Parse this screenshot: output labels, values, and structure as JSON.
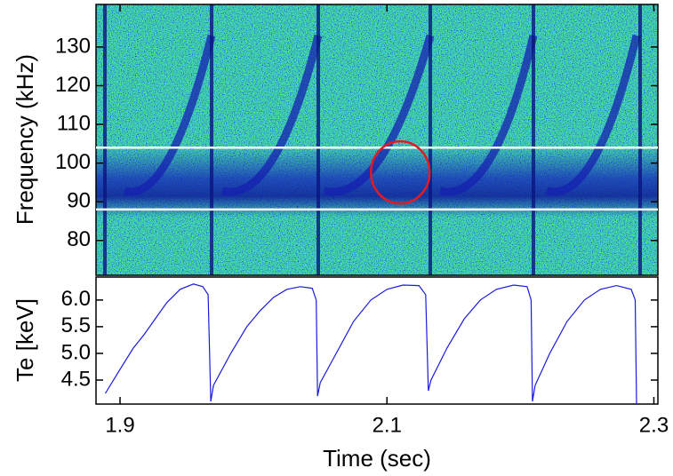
{
  "chart_data": [
    {
      "type": "spectrogram",
      "ylabel": "Frequency (kHz)",
      "xlim": [
        1.882,
        2.303
      ],
      "ylim": [
        71,
        141
      ],
      "yticks": [
        80,
        90,
        100,
        110,
        120,
        130
      ],
      "hlines": [
        88,
        104
      ],
      "hline_color": "#ffffff",
      "circle": {
        "x": 2.11,
        "y": 97.6
      },
      "circle_color": "#e8191e"
    },
    {
      "type": "line",
      "xlabel": "Time (sec)",
      "ylabel": "Te [keV]",
      "color": "#1a1adf",
      "xlim": [
        1.882,
        2.303
      ],
      "ylim": [
        4.05,
        6.43
      ],
      "xticks": [
        1.9,
        2.1,
        2.3
      ],
      "yticks": [
        4.5,
        {
          "value": 5.0,
          "label": "5.0"
        },
        5.5,
        {
          "value": 6.0,
          "label": "6.0"
        }
      ],
      "x": [
        1.889,
        1.9,
        1.91,
        1.918,
        1.925,
        1.935,
        1.945,
        1.955,
        1.962,
        1.966,
        1.968,
        1.97,
        1.983,
        1.995,
        2.005,
        2.015,
        2.025,
        2.035,
        2.044,
        2.047,
        2.048,
        2.05,
        2.062,
        2.075,
        2.088,
        2.1,
        2.112,
        2.124,
        2.129,
        2.131,
        2.133,
        2.145,
        2.158,
        2.17,
        2.182,
        2.195,
        2.205,
        2.208,
        2.209,
        2.211,
        2.222,
        2.235,
        2.248,
        2.26,
        2.272,
        2.283,
        2.286,
        2.287
      ],
      "values": [
        4.25,
        4.7,
        5.1,
        5.35,
        5.6,
        5.95,
        6.2,
        6.3,
        6.25,
        6.1,
        4.1,
        4.4,
        5.0,
        5.5,
        5.8,
        6.05,
        6.2,
        6.25,
        6.22,
        6.0,
        4.2,
        4.45,
        5.0,
        5.6,
        6.0,
        6.2,
        6.28,
        6.27,
        6.1,
        4.3,
        4.5,
        5.1,
        5.65,
        6.0,
        6.2,
        6.28,
        6.25,
        6.0,
        4.1,
        4.4,
        5.0,
        5.6,
        6.0,
        6.2,
        6.27,
        6.2,
        6.0,
        4.05
      ]
    }
  ]
}
